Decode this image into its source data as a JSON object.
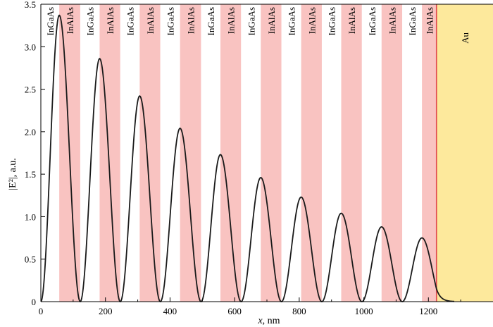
{
  "chart_data": {
    "type": "line",
    "xlabel_var": "x",
    "xlabel_unit": ", nm",
    "ylabel": "|E²|, a.u.",
    "xlim": [
      0,
      1400
    ],
    "ylim": [
      0,
      3.5
    ],
    "xticks": [
      0,
      200,
      400,
      600,
      800,
      1000,
      1200
    ],
    "yticks": [
      0,
      0.5,
      1.0,
      1.5,
      2.0,
      2.5,
      3.0,
      3.5
    ],
    "ytick_labels": [
      "0",
      "0.5",
      "1.0",
      "1.5",
      "2.0",
      "2.5",
      "3.0",
      "3.5"
    ],
    "layers": [
      {
        "label": "InGaAs",
        "x0": 0,
        "x1": 57,
        "material": "InGaAs"
      },
      {
        "label": "InAlAs",
        "x0": 57,
        "x1": 122,
        "material": "InAlAs"
      },
      {
        "label": "InGaAs",
        "x0": 122,
        "x1": 182,
        "material": "InGaAs"
      },
      {
        "label": "InAlAs",
        "x0": 182,
        "x1": 246,
        "material": "InAlAs"
      },
      {
        "label": "InGaAs",
        "x0": 246,
        "x1": 306,
        "material": "InGaAs"
      },
      {
        "label": "InAlAs",
        "x0": 306,
        "x1": 370,
        "material": "InAlAs"
      },
      {
        "label": "InGaAs",
        "x0": 370,
        "x1": 431,
        "material": "InGaAs"
      },
      {
        "label": "InAlAs",
        "x0": 431,
        "x1": 496,
        "material": "InAlAs"
      },
      {
        "label": "InGaAs",
        "x0": 496,
        "x1": 556,
        "material": "InGaAs"
      },
      {
        "label": "InAlAs",
        "x0": 556,
        "x1": 620,
        "material": "InAlAs"
      },
      {
        "label": "InGaAs",
        "x0": 620,
        "x1": 681,
        "material": "InGaAs"
      },
      {
        "label": "InAlAs",
        "x0": 681,
        "x1": 745,
        "material": "InAlAs"
      },
      {
        "label": "InGaAs",
        "x0": 745,
        "x1": 806,
        "material": "InGaAs"
      },
      {
        "label": "InAlAs",
        "x0": 806,
        "x1": 870,
        "material": "InAlAs"
      },
      {
        "label": "InGaAs",
        "x0": 870,
        "x1": 930,
        "material": "InGaAs"
      },
      {
        "label": "InAlAs",
        "x0": 930,
        "x1": 994,
        "material": "InAlAs"
      },
      {
        "label": "InGaAs",
        "x0": 994,
        "x1": 1055,
        "material": "InGaAs"
      },
      {
        "label": "InAlAs",
        "x0": 1055,
        "x1": 1119,
        "material": "InAlAs"
      },
      {
        "label": "InGaAs",
        "x0": 1119,
        "x1": 1180,
        "material": "InGaAs"
      },
      {
        "label": "InAlAs",
        "x0": 1180,
        "x1": 1225,
        "material": "InAlAs"
      },
      {
        "label": "Au",
        "x0": 1225,
        "x1": 1400,
        "material": "Au"
      }
    ],
    "series": [
      {
        "peaks_x": [
          57,
          182,
          306,
          431,
          556,
          681,
          806,
          930,
          1055,
          1180
        ],
        "peaks_y": [
          3.37,
          2.86,
          2.42,
          2.04,
          1.73,
          1.46,
          1.23,
          1.04,
          0.88,
          0.75
        ],
        "minima_x": [
          0,
          122,
          246,
          370,
          496,
          620,
          745,
          870,
          994,
          1119
        ],
        "decay_end_x": 1280
      }
    ],
    "colors": {
      "InGaAs": "#ffffff",
      "InAlAs": "#f9c3c1",
      "Au": "#fde99c",
      "interface": "#e0494f",
      "curve": "#1a1a1a"
    }
  }
}
